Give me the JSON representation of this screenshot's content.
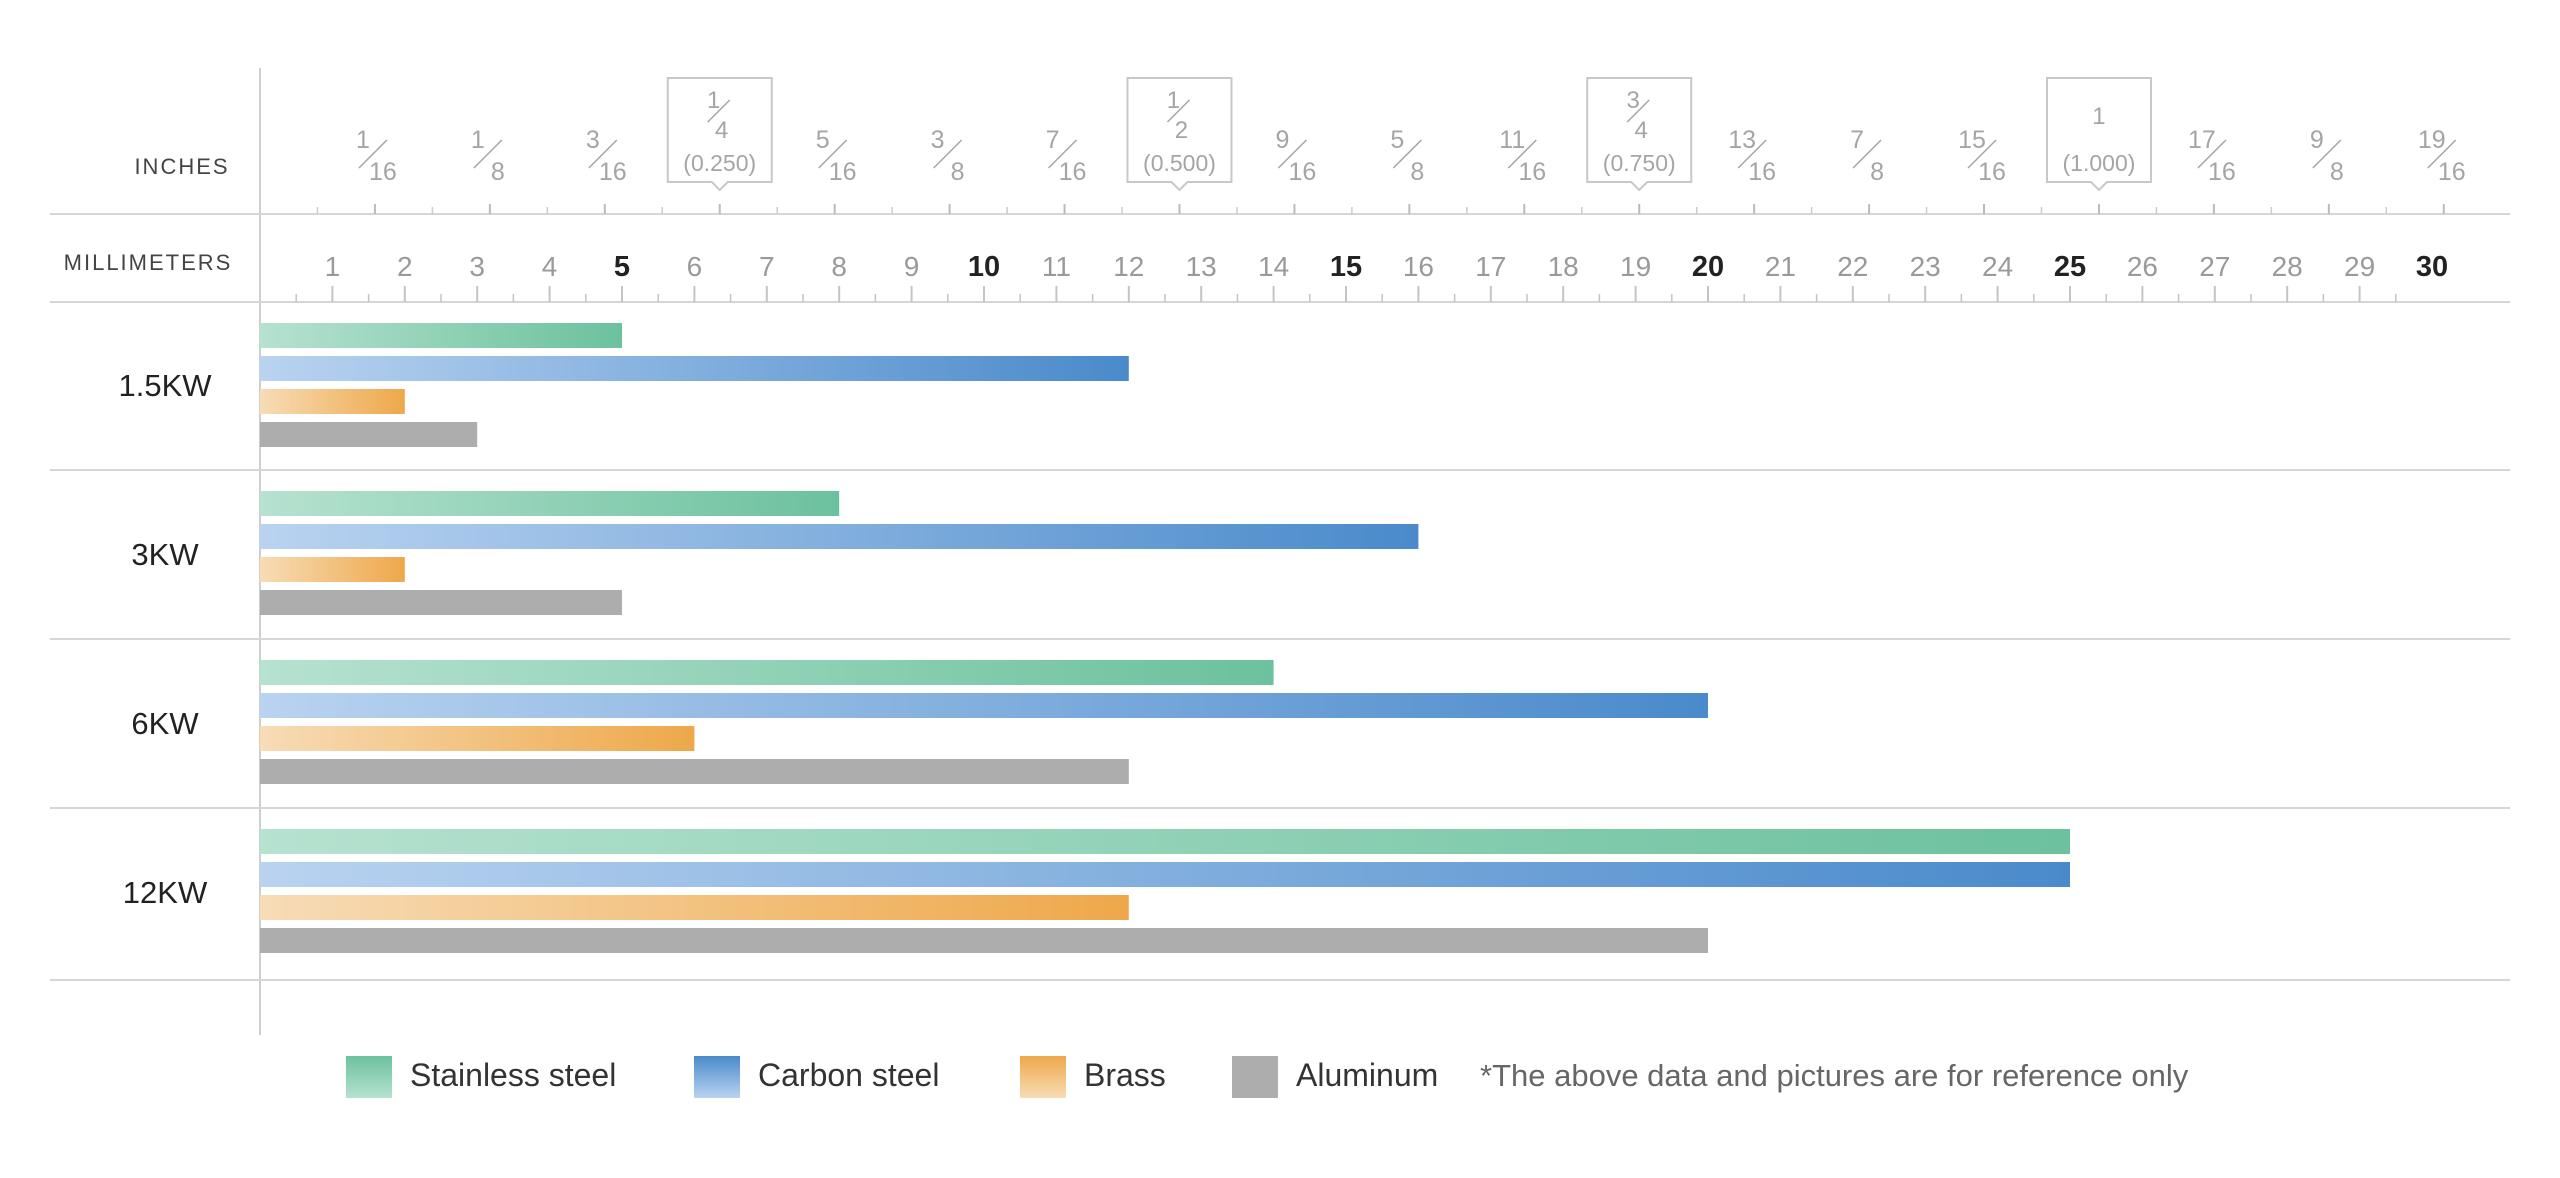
{
  "chart_data": {
    "type": "bar",
    "orientation": "horizontal",
    "axes": {
      "inches_label": "INCHES",
      "millimeters_label": "MILLIMETERS",
      "mm_range": [
        0,
        30
      ],
      "mm_ticks": [
        "1",
        "2",
        "3",
        "4",
        "5",
        "6",
        "7",
        "8",
        "9",
        "10",
        "11",
        "12",
        "13",
        "14",
        "15",
        "16",
        "17",
        "18",
        "19",
        "20",
        "21",
        "22",
        "23",
        "24",
        "25",
        "26",
        "27",
        "28",
        "29",
        "30"
      ],
      "mm_bold_ticks": [
        "5",
        "10",
        "15",
        "20",
        "25",
        "30"
      ],
      "inch_fractions": [
        {
          "num": "1",
          "den": "16",
          "mm": 1.5875
        },
        {
          "num": "1",
          "den": "8",
          "mm": 3.175
        },
        {
          "num": "3",
          "den": "16",
          "mm": 4.7625
        },
        {
          "num": "1",
          "den": "4",
          "dec": "(0.250)",
          "mm": 6.35,
          "boxed": true
        },
        {
          "num": "5",
          "den": "16",
          "mm": 7.9375
        },
        {
          "num": "3",
          "den": "8",
          "mm": 9.525
        },
        {
          "num": "7",
          "den": "16",
          "mm": 11.1125
        },
        {
          "num": "1",
          "den": "2",
          "dec": "(0.500)",
          "mm": 12.7,
          "boxed": true
        },
        {
          "num": "9",
          "den": "16",
          "mm": 14.2875
        },
        {
          "num": "5",
          "den": "8",
          "mm": 15.875
        },
        {
          "num": "11",
          "den": "16",
          "mm": 17.4625
        },
        {
          "num": "3",
          "den": "4",
          "dec": "(0.750)",
          "mm": 19.05,
          "boxed": true
        },
        {
          "num": "13",
          "den": "16",
          "mm": 20.6375
        },
        {
          "num": "7",
          "den": "8",
          "mm": 22.225
        },
        {
          "num": "15",
          "den": "16",
          "mm": 23.8125
        },
        {
          "num": "1",
          "den": "",
          "dec": "(1.000)",
          "mm": 25.4,
          "boxed": true
        },
        {
          "num": "17",
          "den": "16",
          "mm": 26.9875
        },
        {
          "num": "9",
          "den": "8",
          "mm": 28.575
        },
        {
          "num": "19",
          "den": "16",
          "mm": 30.1625
        }
      ]
    },
    "categories": [
      "1.5KW",
      "3KW",
      "6KW",
      "12KW"
    ],
    "series": [
      {
        "name": "Stainless steel",
        "values": [
          5,
          8,
          14,
          25
        ],
        "color": "#6cc19e",
        "color_light": "#b6e2d0"
      },
      {
        "name": "Carbon steel",
        "values": [
          12,
          16,
          20,
          25
        ],
        "color": "#4a8acb",
        "color_light": "#b9d3f0"
      },
      {
        "name": "Brass",
        "values": [
          2,
          2,
          6,
          12
        ],
        "color": "#eea84a",
        "color_light": "#f7dcb6"
      },
      {
        "name": "Aluminum",
        "values": [
          3,
          5,
          12,
          20
        ],
        "color": "#adadad",
        "color_light": "#adadad"
      }
    ],
    "legend_placement": "bottom",
    "note": "*The above data and pictures are for reference only",
    "grid": true
  }
}
